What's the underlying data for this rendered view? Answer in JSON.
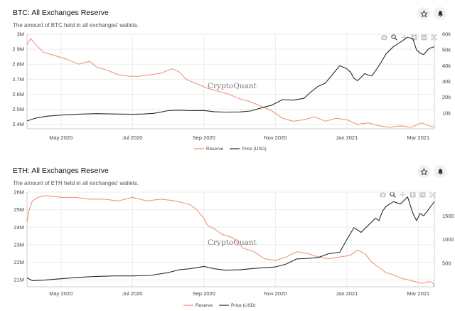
{
  "colors": {
    "reserve": "#f08a70",
    "price": "#2a2a2a",
    "grid": "#ececec",
    "axis": "#cccccc"
  },
  "icons": [
    "star-icon",
    "bell-icon",
    "camera-icon",
    "zoom-icon",
    "pan-icon",
    "zoom-in-icon",
    "zoom-out-icon",
    "reset-axes-icon"
  ],
  "watermark": "CryptoQuant",
  "chart_data": [
    {
      "type": "line",
      "title": "BTC: All Exchanges Reserve",
      "subtitle": "The amount of BTC held in all exchanges' wallets.",
      "x_ticks": [
        "May 2020",
        "Jul 2020",
        "Sep 2020",
        "Nov 2020",
        "Jan 2021",
        "Mar 2021"
      ],
      "x_tick_months": [
        1.0,
        3.0,
        5.0,
        7.0,
        9.0,
        11.0
      ],
      "x_range_months": [
        0.05,
        11.45
      ],
      "y_left": {
        "ticks": [
          "2.4M",
          "2.5M",
          "2.6M",
          "2.7M",
          "2.8M",
          "2.9M",
          "3M"
        ],
        "values": [
          2.4,
          2.5,
          2.6,
          2.7,
          2.8,
          2.9,
          3.0
        ],
        "range": [
          2.37,
          3.0
        ]
      },
      "y_right": {
        "ticks": [
          "10k",
          "20k",
          "30k",
          "40k",
          "50k",
          "60k"
        ],
        "values": [
          10,
          20,
          30,
          40,
          50,
          60
        ],
        "range": [
          0,
          60
        ]
      },
      "legend": [
        "Reserve",
        "Price (USD)"
      ],
      "series": [
        {
          "name": "Reserve",
          "axis": "left",
          "unit": "M BTC",
          "x": [
            0.05,
            0.15,
            0.3,
            0.5,
            0.8,
            1.2,
            1.5,
            1.8,
            2.0,
            2.3,
            2.6,
            2.9,
            3.2,
            3.5,
            3.8,
            4.1,
            4.3,
            4.5,
            4.7,
            4.9,
            5.1,
            5.4,
            5.7,
            6.0,
            6.3,
            6.6,
            6.9,
            7.2,
            7.5,
            7.8,
            8.1,
            8.4,
            8.7,
            9.0,
            9.3,
            9.6,
            9.9,
            10.2,
            10.5,
            10.8,
            11.1,
            11.3,
            11.45
          ],
          "values": [
            2.93,
            2.97,
            2.93,
            2.88,
            2.86,
            2.83,
            2.8,
            2.82,
            2.78,
            2.76,
            2.73,
            2.72,
            2.72,
            2.73,
            2.74,
            2.77,
            2.75,
            2.7,
            2.68,
            2.66,
            2.64,
            2.62,
            2.6,
            2.57,
            2.55,
            2.52,
            2.49,
            2.44,
            2.42,
            2.43,
            2.45,
            2.42,
            2.44,
            2.43,
            2.4,
            2.41,
            2.39,
            2.38,
            2.39,
            2.38,
            2.41,
            2.39,
            2.38
          ]
        },
        {
          "name": "Price (USD)",
          "axis": "right",
          "unit": "k USD",
          "x": [
            0.05,
            0.3,
            0.6,
            1.0,
            1.5,
            2.0,
            2.5,
            3.0,
            3.3,
            3.6,
            4.0,
            4.3,
            4.6,
            5.0,
            5.3,
            5.6,
            6.0,
            6.3,
            6.6,
            6.9,
            7.2,
            7.5,
            7.8,
            8.0,
            8.2,
            8.4,
            8.6,
            8.8,
            9.0,
            9.1,
            9.2,
            9.3,
            9.5,
            9.6,
            9.7,
            9.9,
            10.1,
            10.3,
            10.5,
            10.7,
            10.85,
            10.95,
            11.05,
            11.15,
            11.3,
            11.45
          ],
          "values": [
            5.0,
            6.8,
            8.0,
            8.7,
            9.3,
            9.6,
            9.4,
            9.2,
            9.4,
            9.8,
            11.5,
            11.8,
            11.5,
            11.6,
            10.8,
            10.6,
            10.7,
            11.3,
            13.2,
            15.0,
            18.5,
            18.2,
            19.3,
            23.5,
            27.0,
            29.0,
            34.5,
            40.0,
            38.0,
            36.0,
            32.0,
            30.5,
            35.0,
            34.0,
            33.5,
            40.0,
            47.5,
            52.0,
            55.0,
            58.0,
            57.0,
            50.0,
            48.0,
            47.0,
            51.0,
            52.0
          ]
        }
      ]
    },
    {
      "type": "line",
      "title": "ETH: All Exchanges Reserve",
      "subtitle": "The amount of ETH held in all exchanges' wallets.",
      "x_ticks": [
        "May 2020",
        "Jul 2020",
        "Sep 2020",
        "Nov 2020",
        "Jan 2021",
        "Mar 2021"
      ],
      "x_tick_months": [
        1.0,
        3.0,
        5.0,
        7.0,
        9.0,
        11.0
      ],
      "x_range_months": [
        0.05,
        11.45
      ],
      "y_left": {
        "ticks": [
          "21M",
          "22M",
          "23M",
          "24M",
          "25M",
          "26M"
        ],
        "values": [
          21,
          22,
          23,
          24,
          25,
          26
        ],
        "range": [
          20.6,
          26.0
        ]
      },
      "y_right": {
        "ticks": [
          "500",
          "1000",
          "1500"
        ],
        "values": [
          500,
          1000,
          1500
        ],
        "range": [
          0,
          2000
        ]
      },
      "legend": [
        "Reserve",
        "Price (USD)"
      ],
      "series": [
        {
          "name": "Reserve",
          "axis": "left",
          "unit": "M ETH",
          "x": [
            0.05,
            0.1,
            0.2,
            0.35,
            0.6,
            1.0,
            1.4,
            1.8,
            2.2,
            2.6,
            3.0,
            3.4,
            3.8,
            4.2,
            4.6,
            4.8,
            5.0,
            5.1,
            5.3,
            5.5,
            5.8,
            6.1,
            6.4,
            6.7,
            7.0,
            7.3,
            7.6,
            7.9,
            8.2,
            8.5,
            8.8,
            9.1,
            9.3,
            9.5,
            9.7,
            9.9,
            10.1,
            10.3,
            10.5,
            10.7,
            10.9,
            11.1,
            11.3,
            11.4,
            11.45
          ],
          "values": [
            24.3,
            24.9,
            25.5,
            25.7,
            25.8,
            25.7,
            25.7,
            25.6,
            25.6,
            25.5,
            25.7,
            25.5,
            25.6,
            25.5,
            25.3,
            25.0,
            24.5,
            24.1,
            23.9,
            23.6,
            23.4,
            22.8,
            22.6,
            22.2,
            22.1,
            22.3,
            22.6,
            22.5,
            22.3,
            22.2,
            22.3,
            22.4,
            22.7,
            22.5,
            22.0,
            21.7,
            21.4,
            21.3,
            21.1,
            21.0,
            20.9,
            20.8,
            20.9,
            20.85,
            20.6
          ]
        },
        {
          "name": "Price (USD)",
          "axis": "right",
          "unit": "USD",
          "x": [
            0.05,
            0.2,
            0.5,
            1.0,
            1.5,
            2.0,
            2.5,
            3.0,
            3.5,
            4.0,
            4.3,
            4.6,
            5.0,
            5.3,
            5.6,
            6.0,
            6.3,
            6.6,
            7.0,
            7.3,
            7.6,
            7.9,
            8.2,
            8.5,
            8.8,
            9.0,
            9.2,
            9.4,
            9.6,
            9.8,
            9.9,
            10.0,
            10.1,
            10.3,
            10.5,
            10.7,
            10.85,
            10.95,
            11.05,
            11.15,
            11.3,
            11.45
          ],
          "values": [
            190,
            130,
            140,
            170,
            200,
            220,
            230,
            230,
            240,
            300,
            360,
            380,
            430,
            380,
            350,
            360,
            380,
            400,
            420,
            480,
            590,
            600,
            620,
            700,
            730,
            1000,
            1250,
            1150,
            1300,
            1450,
            1400,
            1600,
            1700,
            1800,
            1750,
            1900,
            1550,
            1400,
            1550,
            1500,
            1650,
            1800
          ]
        }
      ]
    }
  ]
}
